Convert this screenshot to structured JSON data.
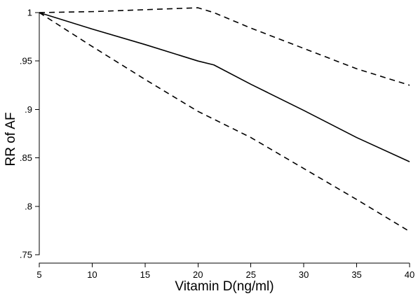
{
  "chart_data": {
    "type": "line",
    "xlabel": "Vitamin D(ng/ml)",
    "ylabel": "RR of AF",
    "xlim": [
      5,
      40
    ],
    "ylim": [
      0.75,
      1.0
    ],
    "xticks": [
      5,
      10,
      15,
      20,
      25,
      30,
      35,
      40
    ],
    "yticks": [
      0.75,
      0.8,
      0.85,
      0.9,
      0.95,
      1.0
    ],
    "ytick_labels": [
      ".75",
      ".8",
      ".85",
      ".9",
      ".95",
      "1"
    ],
    "grid": false,
    "series": [
      {
        "style": "solid",
        "color": "#000000",
        "x": [
          5,
          10,
          15,
          20,
          21.5,
          25,
          30,
          35,
          40
        ],
        "y": [
          1.0,
          0.983,
          0.967,
          0.95,
          0.946,
          0.926,
          0.899,
          0.871,
          0.846
        ]
      },
      {
        "style": "dashed",
        "color": "#000000",
        "x": [
          5,
          10,
          15,
          20,
          21.5,
          25,
          30,
          35,
          40
        ],
        "y": [
          1.0,
          1.001,
          1.003,
          1.005,
          1.0,
          0.984,
          0.963,
          0.942,
          0.925
        ]
      },
      {
        "style": "dashed",
        "color": "#000000",
        "x": [
          5,
          10,
          15,
          20,
          25,
          30,
          35,
          40
        ],
        "y": [
          1.0,
          0.965,
          0.931,
          0.898,
          0.871,
          0.839,
          0.807,
          0.774
        ]
      }
    ]
  }
}
